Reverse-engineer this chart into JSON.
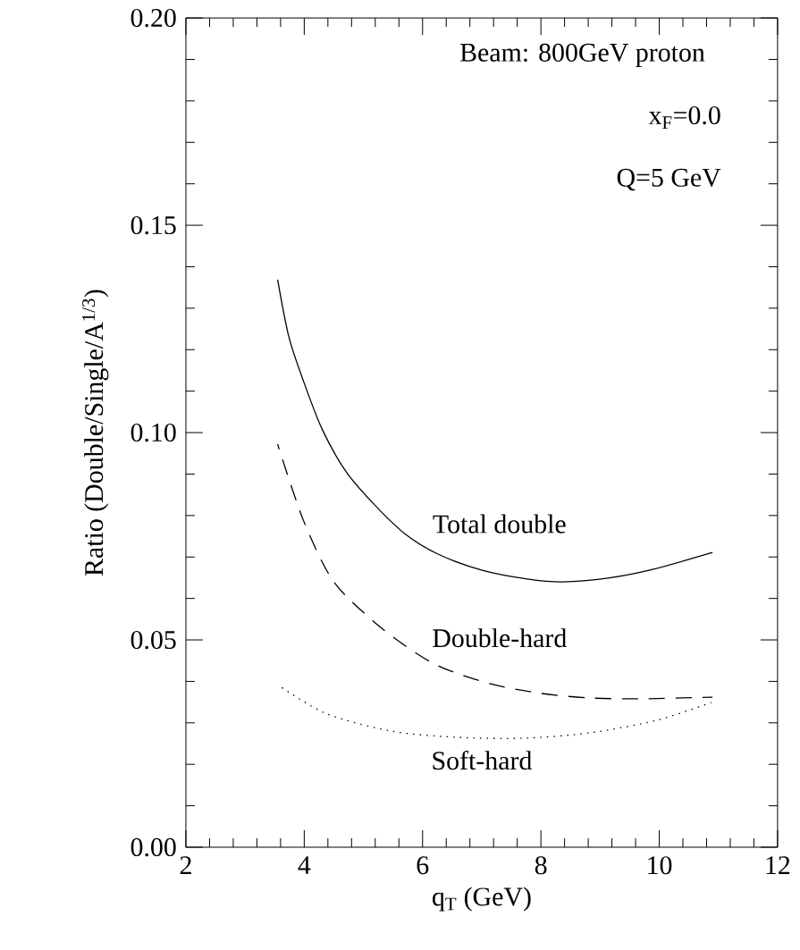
{
  "chart_data": {
    "type": "line",
    "xlabel": "q$_{T}$ (GeV)",
    "ylabel": "Ratio (Double/Single/A$^{1/3}$)",
    "annotations": [
      "Beam: 800GeV proton",
      "x$_{F}$=0.0",
      "Q=5 GeV"
    ],
    "xlim": [
      2,
      12
    ],
    "ylim": [
      0,
      0.2
    ],
    "xticks": [
      2,
      4,
      6,
      8,
      10,
      12
    ],
    "yticks": [
      {
        "value": 0,
        "label": "0.00"
      },
      {
        "value": 0.05,
        "label": "0.05"
      },
      {
        "value": 0.1,
        "label": "0.10"
      },
      {
        "value": 0.15,
        "label": "0.15"
      },
      {
        "value": 0.2,
        "label": "0.20"
      }
    ],
    "grid": false,
    "legend": false,
    "marker": "none",
    "series": [
      {
        "name": "Total double",
        "color": "#000000",
        "line_style": "solid",
        "x": [
          3.55,
          3.74,
          3.99,
          4.3,
          4.7,
          5.16,
          5.7,
          6.26,
          7.01,
          7.77,
          8.37,
          9.13,
          9.89,
          10.9
        ],
        "values": [
          0.1369,
          0.1231,
          0.1123,
          0.1009,
          0.0907,
          0.083,
          0.0756,
          0.0707,
          0.0668,
          0.0647,
          0.064,
          0.0649,
          0.067,
          0.0711
        ]
      },
      {
        "name": "Double-hard",
        "color": "#000000",
        "line_style": "dashed",
        "x": [
          3.55,
          3.99,
          4.49,
          5.2,
          5.87,
          6.37,
          7.15,
          8.0,
          8.83,
          9.67,
          10.9
        ],
        "values": [
          0.0972,
          0.0787,
          0.0642,
          0.0541,
          0.047,
          0.0431,
          0.0394,
          0.0371,
          0.036,
          0.0358,
          0.0362
        ]
      },
      {
        "name": "Soft-hard",
        "color": "#000000",
        "line_style": "dotted",
        "x": [
          3.55,
          4.36,
          5.47,
          6.59,
          7.71,
          8.83,
          9.95,
          10.88
        ],
        "values": [
          0.0392,
          0.0323,
          0.028,
          0.0265,
          0.0263,
          0.0276,
          0.0306,
          0.0349
        ]
      }
    ]
  }
}
